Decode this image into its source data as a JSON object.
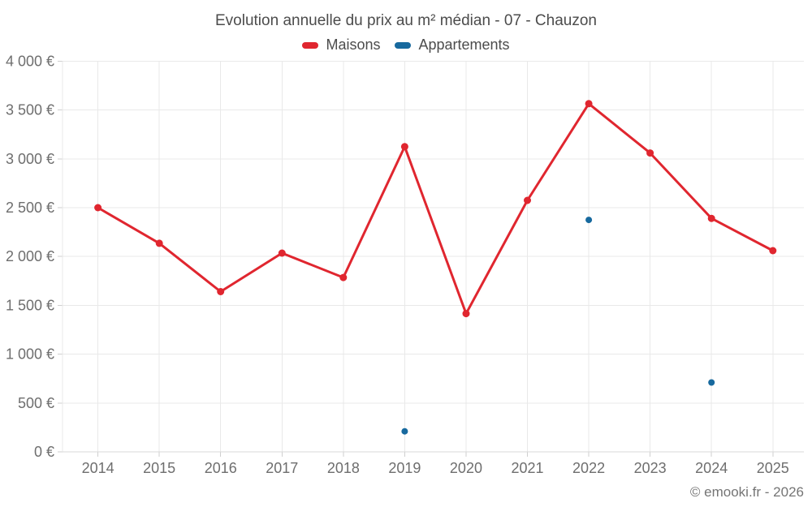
{
  "page": {
    "title": "Evolution annuelle du prix au m² médian - 07 - Chauzon",
    "footer": "© emooki.fr - 2026"
  },
  "chart_data": {
    "type": "line",
    "title": "Evolution annuelle du prix au m² médian - 07 - Chauzon",
    "categories": [
      "2014",
      "2015",
      "2016",
      "2017",
      "2018",
      "2019",
      "2020",
      "2021",
      "2022",
      "2023",
      "2024",
      "2025"
    ],
    "series": [
      {
        "name": "Maisons",
        "color": "#e0262f",
        "style": "line+markers",
        "values": [
          2500,
          2135,
          1640,
          2035,
          1785,
          3125,
          1415,
          2575,
          3565,
          3060,
          2390,
          2060
        ]
      },
      {
        "name": "Appartements",
        "color": "#17699e",
        "style": "markers",
        "values": [
          null,
          null,
          null,
          null,
          null,
          210,
          null,
          null,
          2375,
          null,
          710,
          null
        ]
      }
    ],
    "xlabel": "",
    "ylabel": "",
    "ylim": [
      0,
      4000
    ],
    "ytick_step": 500,
    "ytick_suffix": " €",
    "grid": true,
    "legend_position": "top",
    "currency_format": "french-thousands-space"
  },
  "style": {
    "grid_color": "#e9e9e9",
    "axis_color": "#d9d9d9",
    "tick_color": "#cfcfcf",
    "label_color": "#6e6e6e",
    "title_color": "#4c4c4c"
  }
}
